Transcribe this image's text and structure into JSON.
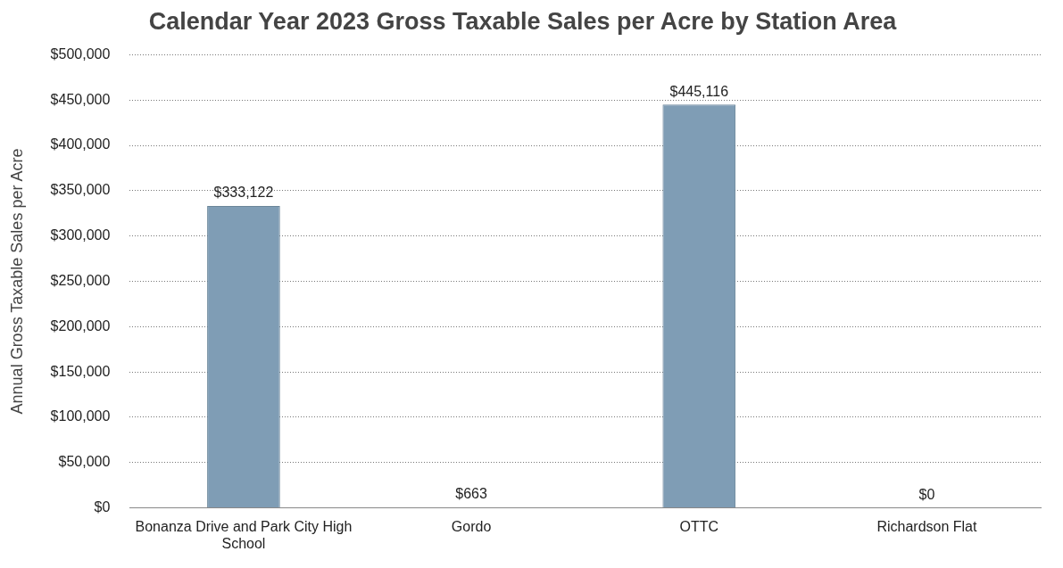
{
  "chart_data": {
    "type": "bar",
    "title": "Calendar Year 2023 Gross Taxable Sales per Acre by Station Area",
    "ylabel": "Annual Gross Taxable Sales per Acre",
    "categories": [
      "Bonanza Drive and Park City High School",
      "Gordo",
      "OTTC",
      "Richardson Flat"
    ],
    "values": [
      333122,
      663,
      445116,
      0
    ],
    "color": "#7f9db5",
    "value_labels": [
      "$333,122",
      "$663",
      "$445,116",
      "$0"
    ],
    "ylim": [
      0,
      500000
    ],
    "yticks": [
      {
        "value": 0,
        "label": "$0"
      },
      {
        "value": 50000,
        "label": "$50,000"
      },
      {
        "value": 100000,
        "label": "$100,000"
      },
      {
        "value": 150000,
        "label": "$150,000"
      },
      {
        "value": 200000,
        "label": "$200,000"
      },
      {
        "value": 250000,
        "label": "$250,000"
      },
      {
        "value": 300000,
        "label": "$300,000"
      },
      {
        "value": 350000,
        "label": "$350,000"
      },
      {
        "value": 400000,
        "label": "$400,000"
      },
      {
        "value": 450000,
        "label": "$450,000"
      },
      {
        "value": 500000,
        "label": "$500,000"
      }
    ],
    "grid": "y",
    "legend": false
  }
}
